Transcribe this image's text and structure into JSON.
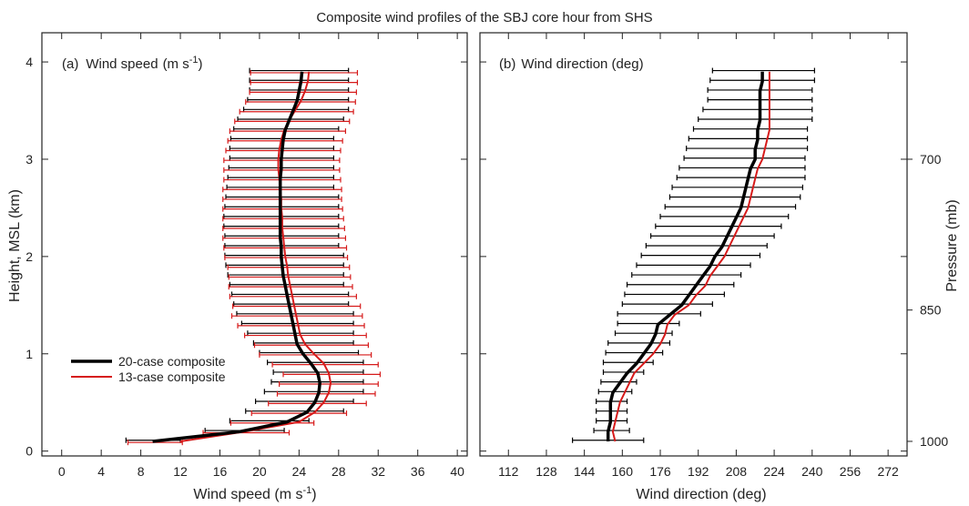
{
  "title": "Composite wind profiles of the SBJ core hour from SHS",
  "colors": {
    "composite20": "#000000",
    "composite13": "#d61a1a",
    "axis": "#222222"
  },
  "heights_km": [
    0.1,
    0.2,
    0.3,
    0.4,
    0.5,
    0.6,
    0.7,
    0.8,
    0.9,
    1.0,
    1.1,
    1.2,
    1.3,
    1.4,
    1.5,
    1.6,
    1.7,
    1.8,
    1.9,
    2.0,
    2.1,
    2.2,
    2.3,
    2.4,
    2.5,
    2.6,
    2.7,
    2.8,
    2.9,
    3.0,
    3.1,
    3.2,
    3.3,
    3.4,
    3.5,
    3.6,
    3.7,
    3.8,
    3.9
  ],
  "chart_data": [
    {
      "type": "line",
      "panel_label": "(a)",
      "panel_title": "Wind speed",
      "panel_unit": "(m s",
      "panel_unit_sup": "-1",
      "panel_unit_end": ")",
      "xlabel": "Wind speed (m s",
      "xlabel_sup": "-1",
      "xlabel_end": ")",
      "ylabel": "Height, MSL (km)",
      "xlim": [
        -2,
        41
      ],
      "ylim": [
        -0.05,
        4.3
      ],
      "xticks": [
        0,
        4,
        8,
        12,
        16,
        20,
        24,
        28,
        32,
        36,
        40
      ],
      "yticks": [
        0,
        1,
        2,
        3,
        4
      ],
      "series": [
        {
          "name": "20-case composite",
          "color": "#000000",
          "mean": [
            9.2,
            18.0,
            22.8,
            24.8,
            25.6,
            26.0,
            26.1,
            25.9,
            25.2,
            24.4,
            23.8,
            23.6,
            23.4,
            23.2,
            23.0,
            22.8,
            22.6,
            22.4,
            22.3,
            22.2,
            22.2,
            22.1,
            22.1,
            22.1,
            22.1,
            22.1,
            22.1,
            22.1,
            22.2,
            22.2,
            22.3,
            22.4,
            22.6,
            23.0,
            23.4,
            23.8,
            24.0,
            24.2,
            24.3
          ],
          "lower": [
            6.5,
            14.5,
            17.0,
            18.6,
            19.6,
            20.5,
            21.2,
            21.4,
            20.8,
            20.0,
            19.4,
            18.8,
            18.2,
            17.7,
            17.4,
            17.2,
            17.0,
            16.8,
            16.6,
            16.5,
            16.5,
            16.5,
            16.4,
            16.4,
            16.5,
            16.6,
            16.7,
            16.8,
            16.9,
            17.0,
            17.0,
            17.1,
            17.4,
            17.8,
            18.4,
            18.8,
            19.0,
            19.0,
            19.0
          ],
          "upper": [
            12.0,
            22.5,
            25.0,
            28.5,
            29.5,
            30.5,
            30.5,
            30.5,
            30.5,
            30.0,
            29.5,
            29.5,
            29.5,
            29.5,
            29.0,
            29.0,
            28.5,
            28.5,
            28.5,
            28.5,
            28.0,
            28.0,
            28.0,
            28.0,
            28.0,
            28.0,
            27.5,
            27.5,
            27.5,
            27.5,
            27.5,
            27.5,
            28.0,
            28.5,
            29.0,
            29.0,
            29.0,
            29.0,
            29.0
          ]
        },
        {
          "name": "13-case composite",
          "color": "#d61a1a",
          "mean": [
            12.0,
            18.5,
            24.0,
            25.6,
            26.5,
            27.0,
            27.2,
            27.0,
            26.5,
            25.5,
            24.6,
            24.1,
            23.9,
            23.7,
            23.5,
            23.3,
            23.1,
            22.9,
            22.8,
            22.6,
            22.5,
            22.4,
            22.3,
            22.3,
            22.2,
            22.2,
            22.1,
            22.0,
            21.9,
            21.9,
            22.0,
            22.2,
            22.5,
            23.0,
            23.6,
            24.2,
            24.6,
            24.9,
            25.0
          ],
          "lower": [
            6.7,
            14.3,
            17.1,
            19.2,
            20.9,
            21.8,
            22.0,
            22.4,
            21.3,
            20.0,
            19.5,
            18.5,
            17.8,
            17.2,
            17.3,
            17.0,
            16.9,
            16.9,
            16.8,
            16.5,
            16.4,
            16.3,
            16.3,
            16.3,
            16.3,
            16.3,
            16.3,
            16.4,
            16.4,
            16.4,
            16.6,
            16.8,
            17.0,
            17.5,
            18.0,
            18.6,
            19.0,
            19.1,
            19.1
          ],
          "upper": [
            12.2,
            23.0,
            25.5,
            28.8,
            30.8,
            31.7,
            32.0,
            32.2,
            32.0,
            31.3,
            31.0,
            30.8,
            30.6,
            30.4,
            30.2,
            29.8,
            29.4,
            29.2,
            29.1,
            28.9,
            28.8,
            28.7,
            28.6,
            28.5,
            28.4,
            28.3,
            28.3,
            28.2,
            28.1,
            28.1,
            28.2,
            28.4,
            28.7,
            29.1,
            29.5,
            29.7,
            29.8,
            29.9,
            29.9
          ]
        }
      ],
      "legend": {
        "position": "lower-left",
        "entries": [
          "20-case composite",
          "13-case composite"
        ]
      }
    },
    {
      "type": "line",
      "panel_label": "(b)",
      "panel_title": "Wind direction (deg)",
      "xlabel": "Wind direction (deg)",
      "y2label": "Pressure (mb)",
      "xlim": [
        100,
        280
      ],
      "ylim": [
        -0.05,
        4.3
      ],
      "xticks": [
        112,
        128,
        144,
        160,
        176,
        192,
        208,
        224,
        240,
        256,
        272
      ],
      "y2ticks": [
        {
          "label": "700",
          "height": 3.0
        },
        {
          "label": "850",
          "height": 1.45
        },
        {
          "label": "1000",
          "height": 0.1
        }
      ],
      "series": [
        {
          "name": "20-case composite",
          "color": "#000000",
          "mean": [
            154,
            154,
            155,
            155,
            155,
            156,
            159,
            162,
            166,
            169,
            172,
            174,
            175,
            180,
            185,
            188,
            191,
            194,
            197,
            199,
            202,
            204,
            206,
            208,
            210,
            211,
            212,
            213,
            214,
            216,
            216,
            217,
            217,
            218,
            218,
            218,
            218,
            219,
            219
          ],
          "lower": [
            139,
            148,
            149,
            149,
            149,
            150,
            151,
            152,
            152,
            153,
            154,
            157,
            158,
            158,
            160,
            161,
            162,
            164,
            166,
            168,
            170,
            172,
            174,
            176,
            178,
            180,
            181,
            183,
            184,
            186,
            187,
            188,
            190,
            192,
            194,
            196,
            196,
            197,
            198
          ],
          "upper": [
            169,
            163,
            162,
            162,
            162,
            164,
            166,
            169,
            173,
            177,
            180,
            181,
            184,
            193,
            198,
            203,
            207,
            210,
            214,
            218,
            221,
            224,
            227,
            230,
            233,
            235,
            236,
            237,
            237,
            237,
            238,
            238,
            238,
            240,
            240,
            240,
            240,
            241,
            241
          ]
        },
        {
          "name": "13-case composite",
          "color": "#d61a1a",
          "mean": [
            157,
            156,
            157,
            158,
            159,
            161,
            163,
            165,
            169,
            173,
            176,
            178,
            179,
            182,
            188,
            191,
            195,
            197,
            200,
            203,
            205,
            207,
            209,
            211,
            213,
            214,
            215,
            216,
            217,
            219,
            220,
            221,
            222,
            222,
            222,
            222,
            222,
            222,
            222
          ]
        }
      ]
    }
  ]
}
